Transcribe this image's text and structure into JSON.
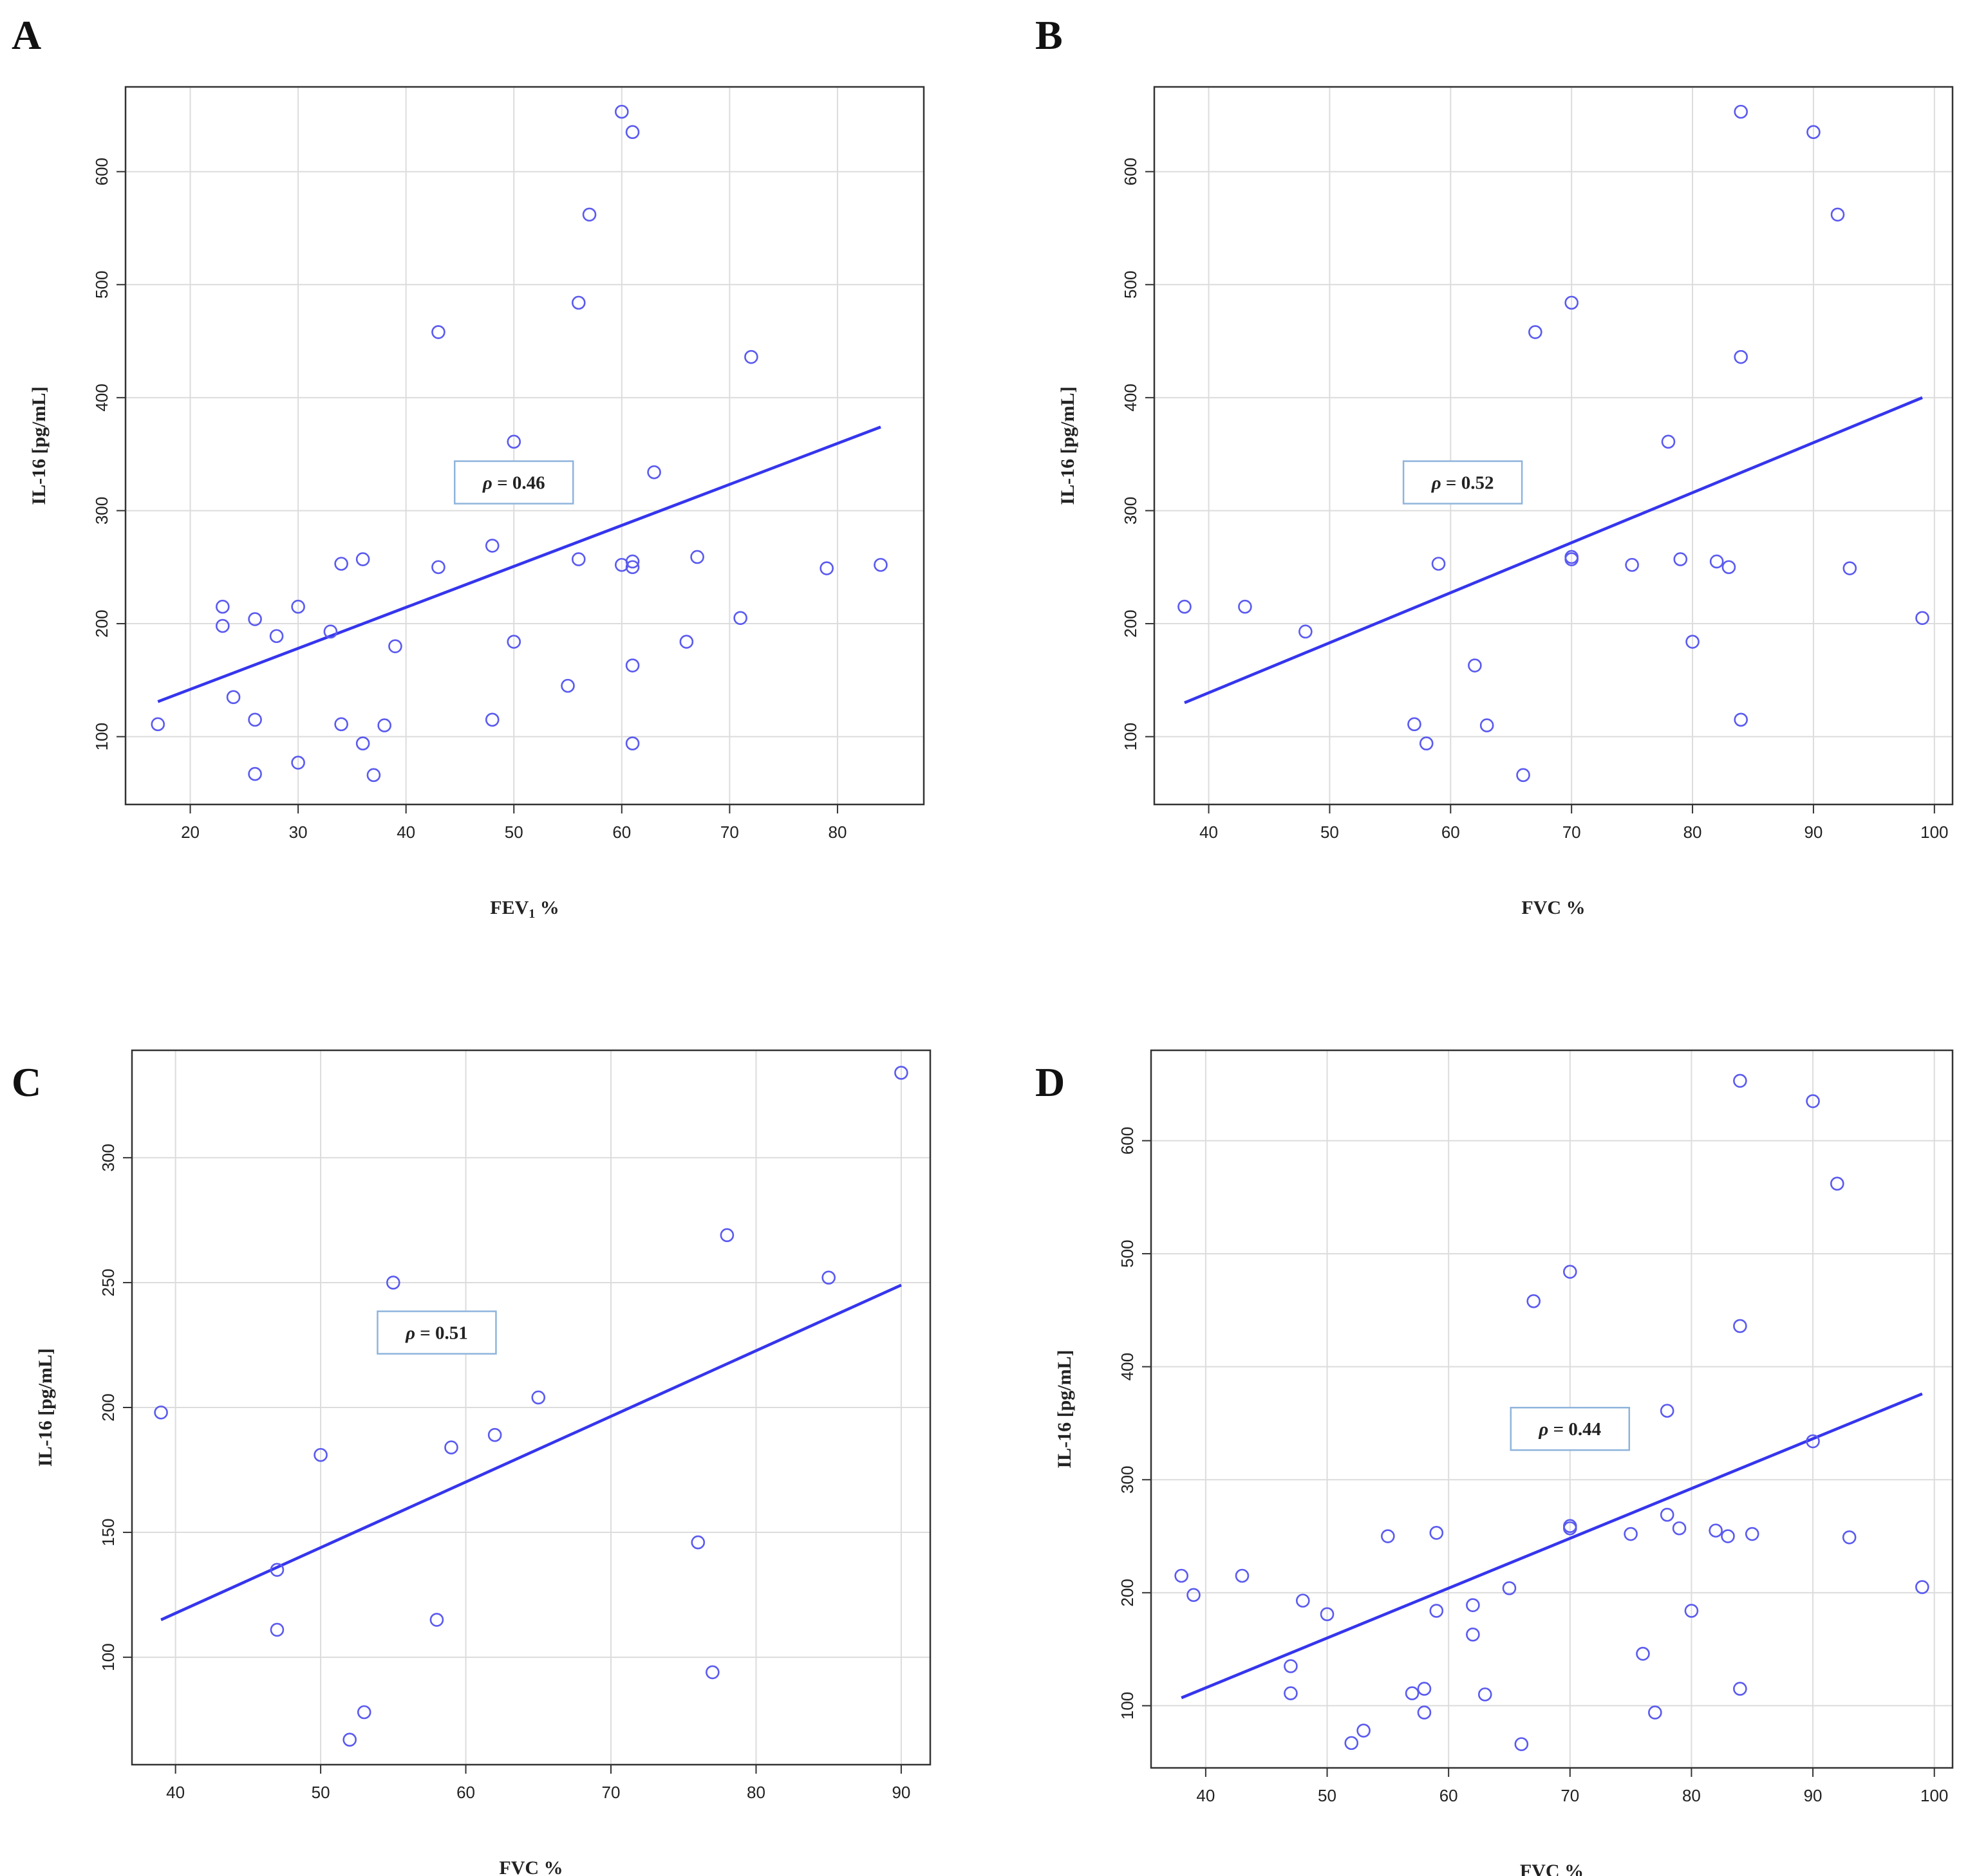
{
  "panels": [
    {
      "id": "A",
      "letter": "A",
      "rho_symbol": "ρ",
      "rho_value": "= 0.46",
      "chart_data": {
        "type": "scatter",
        "title": "",
        "xlabel": "FEV",
        "xlabel_sub": "1",
        "xlabel_suffix": " %",
        "ylabel": "IL-16 [pg/mL]",
        "xlim": [
          14,
          88
        ],
        "ylim": [
          40,
          675
        ],
        "xticks": [
          20,
          30,
          40,
          50,
          60,
          70,
          80
        ],
        "yticks": [
          100,
          200,
          300,
          400,
          500,
          600
        ],
        "points": [
          [
            17,
            111
          ],
          [
            23,
            215
          ],
          [
            23,
            198
          ],
          [
            24,
            135
          ],
          [
            26,
            204
          ],
          [
            26,
            115
          ],
          [
            26,
            67
          ],
          [
            28,
            189
          ],
          [
            30,
            215
          ],
          [
            30,
            77
          ],
          [
            33,
            193
          ],
          [
            34,
            253
          ],
          [
            34,
            111
          ],
          [
            36,
            257
          ],
          [
            36,
            94
          ],
          [
            37,
            66
          ],
          [
            38,
            110
          ],
          [
            39,
            180
          ],
          [
            43,
            458
          ],
          [
            43,
            250
          ],
          [
            48,
            269
          ],
          [
            48,
            115
          ],
          [
            50,
            361
          ],
          [
            50,
            184
          ],
          [
            55,
            145
          ],
          [
            56,
            484
          ],
          [
            56,
            257
          ],
          [
            57,
            562
          ],
          [
            60,
            653
          ],
          [
            60,
            252
          ],
          [
            61,
            635
          ],
          [
            61,
            255
          ],
          [
            61,
            250
          ],
          [
            61,
            163
          ],
          [
            61,
            94
          ],
          [
            63,
            334
          ],
          [
            66,
            184
          ],
          [
            67,
            259
          ],
          [
            71,
            205
          ],
          [
            72,
            436
          ],
          [
            79,
            249
          ],
          [
            84,
            252
          ]
        ],
        "fit_line": [
          [
            17,
            131
          ],
          [
            84,
            374
          ]
        ],
        "rho": 0.46
      }
    },
    {
      "id": "B",
      "letter": "B",
      "rho_symbol": "ρ",
      "rho_value": "= 0.52",
      "chart_data": {
        "type": "scatter",
        "title": "",
        "xlabel": "FVC",
        "xlabel_sub": "",
        "xlabel_suffix": " %",
        "ylabel": "IL-16 [pg/mL]",
        "xlim": [
          35.5,
          101.5
        ],
        "ylim": [
          40,
          675
        ],
        "xticks": [
          40,
          50,
          60,
          70,
          80,
          90,
          100
        ],
        "yticks": [
          100,
          200,
          300,
          400,
          500,
          600
        ],
        "points": [
          [
            38,
            215
          ],
          [
            43,
            215
          ],
          [
            48,
            193
          ],
          [
            57,
            111
          ],
          [
            58,
            94
          ],
          [
            59,
            253
          ],
          [
            62,
            163
          ],
          [
            63,
            110
          ],
          [
            66,
            66
          ],
          [
            67,
            458
          ],
          [
            70,
            484
          ],
          [
            70,
            259
          ],
          [
            70,
            257
          ],
          [
            75,
            252
          ],
          [
            78,
            361
          ],
          [
            79,
            257
          ],
          [
            80,
            184
          ],
          [
            82,
            255
          ],
          [
            83,
            250
          ],
          [
            84,
            653
          ],
          [
            84,
            436
          ],
          [
            84,
            115
          ],
          [
            90,
            635
          ],
          [
            92,
            562
          ],
          [
            93,
            249
          ],
          [
            99,
            205
          ]
        ],
        "fit_line": [
          [
            38,
            130
          ],
          [
            99,
            400
          ]
        ],
        "rho": 0.52
      }
    },
    {
      "id": "C",
      "letter": "C",
      "rho_symbol": "ρ",
      "rho_value": "= 0.51",
      "chart_data": {
        "type": "scatter",
        "title": "",
        "xlabel": "FVC",
        "xlabel_sub": "",
        "xlabel_suffix": " %",
        "ylabel": "IL-16 [pg/mL]",
        "xlim": [
          37,
          92
        ],
        "ylim": [
          57,
          343
        ],
        "xticks": [
          40,
          50,
          60,
          70,
          80,
          90
        ],
        "yticks": [
          100,
          150,
          200,
          250,
          300
        ],
        "points": [
          [
            39,
            198
          ],
          [
            47,
            135
          ],
          [
            47,
            111
          ],
          [
            50,
            181
          ],
          [
            52,
            67
          ],
          [
            53,
            78
          ],
          [
            55,
            250
          ],
          [
            58,
            115
          ],
          [
            59,
            184
          ],
          [
            62,
            189
          ],
          [
            65,
            204
          ],
          [
            76,
            146
          ],
          [
            77,
            94
          ],
          [
            78,
            269
          ],
          [
            85,
            252
          ],
          [
            90,
            334
          ]
        ],
        "fit_line": [
          [
            39,
            115
          ],
          [
            90,
            249
          ]
        ],
        "rho": 0.51
      }
    },
    {
      "id": "D",
      "letter": "D",
      "rho_symbol": "ρ",
      "rho_value": "= 0.44",
      "chart_data": {
        "type": "scatter",
        "title": "",
        "xlabel": "FVC",
        "xlabel_sub": "",
        "xlabel_suffix": " %",
        "ylabel": "IL-16 [pg/mL]",
        "xlim": [
          35.5,
          101.5
        ],
        "ylim": [
          45,
          680
        ],
        "xticks": [
          40,
          50,
          60,
          70,
          80,
          90,
          100
        ],
        "yticks": [
          100,
          200,
          300,
          400,
          500,
          600
        ],
        "points": [
          [
            38,
            215
          ],
          [
            39,
            198
          ],
          [
            43,
            215
          ],
          [
            47,
            135
          ],
          [
            47,
            111
          ],
          [
            48,
            193
          ],
          [
            50,
            181
          ],
          [
            52,
            67
          ],
          [
            53,
            78
          ],
          [
            55,
            250
          ],
          [
            57,
            111
          ],
          [
            58,
            115
          ],
          [
            58,
            94
          ],
          [
            59,
            253
          ],
          [
            59,
            184
          ],
          [
            62,
            189
          ],
          [
            62,
            163
          ],
          [
            63,
            110
          ],
          [
            65,
            204
          ],
          [
            66,
            66
          ],
          [
            67,
            458
          ],
          [
            70,
            484
          ],
          [
            70,
            259
          ],
          [
            70,
            257
          ],
          [
            75,
            252
          ],
          [
            76,
            146
          ],
          [
            77,
            94
          ],
          [
            78,
            361
          ],
          [
            78,
            269
          ],
          [
            79,
            257
          ],
          [
            80,
            184
          ],
          [
            82,
            255
          ],
          [
            83,
            250
          ],
          [
            84,
            653
          ],
          [
            84,
            436
          ],
          [
            84,
            115
          ],
          [
            85,
            252
          ],
          [
            90,
            635
          ],
          [
            90,
            334
          ],
          [
            92,
            562
          ],
          [
            93,
            249
          ],
          [
            99,
            205
          ]
        ],
        "fit_line": [
          [
            38,
            107
          ],
          [
            99,
            376
          ]
        ],
        "rho": 0.44
      }
    }
  ],
  "colors": {
    "points": "#5a5af0",
    "fit_line": "#3535ee",
    "grid": "#dcdcdc",
    "frame": "#333333",
    "rho_box_border": "#8fb4dc"
  }
}
